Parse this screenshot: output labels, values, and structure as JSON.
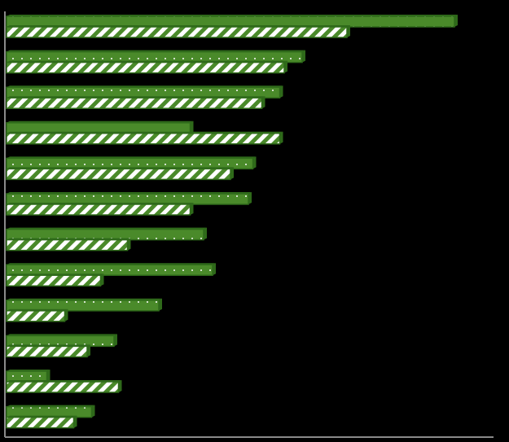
{
  "chart_data": {
    "type": "bar",
    "orientation": "horizontal",
    "categories": [
      "",
      "",
      "",
      "",
      "",
      "",
      "",
      "",
      "",
      "",
      "",
      ""
    ],
    "series": [
      {
        "pattern": "dots",
        "color": "#4a8a2a",
        "values": [
          100,
          66,
          61,
          41,
          55,
          54,
          44,
          46,
          34,
          24,
          9,
          19
        ]
      },
      {
        "pattern": "stripes",
        "color": "#4a8a2a",
        "values": [
          76,
          62,
          57,
          61,
          50,
          41,
          27,
          21,
          13,
          18,
          25,
          15
        ]
      }
    ],
    "xlim": [
      0,
      110
    ],
    "grid": false,
    "legend": "none",
    "colors": {
      "background": "#000000",
      "bar": "#4a8a2a",
      "bar_edge": "#2f6a1a",
      "axis": "#8a8a8a"
    }
  }
}
